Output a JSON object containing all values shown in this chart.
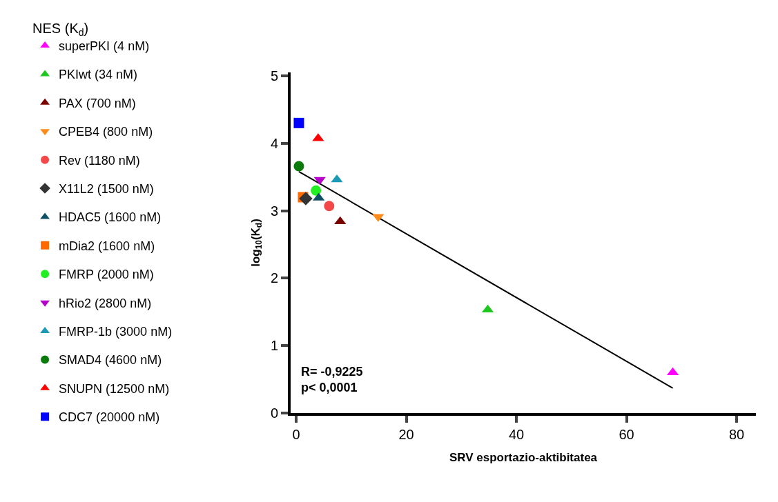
{
  "chart_data": {
    "type": "scatter",
    "xlabel": "SRV esportazio-aktibitatea",
    "ylabel": "log$_{10}$(K$_{d}$)",
    "legend_title": "NES (K$_{d}$)",
    "xlim": [
      -1,
      83.5
    ],
    "ylim": [
      0,
      5.05
    ],
    "xticks": [
      0,
      20,
      40,
      60,
      80
    ],
    "yticks": [
      0,
      1,
      2,
      3,
      4,
      5
    ],
    "legend": "left",
    "annotations": [
      {
        "text": "R= -0,9225\np< 0,0001"
      }
    ],
    "series": [
      {
        "name": "superPKI (4 nM)",
        "color": "#ff00ff",
        "marker": "triangle",
        "x": [
          68.4
        ],
        "values": [
          0.6
        ]
      },
      {
        "name": "PKIwt (34 nM)",
        "color": "#1ec81e",
        "marker": "triangle",
        "x": [
          34.8
        ],
        "values": [
          1.53
        ]
      },
      {
        "name": "PAX (700 nM)",
        "color": "#7a0000",
        "marker": "triangle",
        "x": [
          8.0
        ],
        "values": [
          2.84
        ]
      },
      {
        "name": "CPEB4 (800 nM)",
        "color": "#ff8c1a",
        "marker": "triangle-down",
        "x": [
          14.9
        ],
        "values": [
          2.91
        ]
      },
      {
        "name": "Rev (1180 nM)",
        "color": "#f24848",
        "marker": "circle",
        "x": [
          6.0
        ],
        "values": [
          3.07
        ]
      },
      {
        "name": "X11L2 (1500 nM)",
        "color": "#333333",
        "marker": "diamond",
        "x": [
          1.75
        ],
        "values": [
          3.18
        ]
      },
      {
        "name": "HDAC5 (1600 nM)",
        "color": "#0f5064",
        "marker": "triangle",
        "x": [
          4.1
        ],
        "values": [
          3.19
        ]
      },
      {
        "name": "mDia2 (1600 nM)",
        "color": "#ff6a00",
        "marker": "square",
        "x": [
          1.25
        ],
        "values": [
          3.2
        ]
      },
      {
        "name": "FMRP (2000 nM)",
        "color": "#22f022",
        "marker": "circle",
        "x": [
          3.6
        ],
        "values": [
          3.3
        ]
      },
      {
        "name": "hRio2 (2800 nM)",
        "color": "#b400c8",
        "marker": "triangle-down",
        "x": [
          4.3
        ],
        "values": [
          3.46
        ]
      },
      {
        "name": "FMRP-1b (3000 nM)",
        "color": "#1a9ab4",
        "marker": "triangle",
        "x": [
          7.4
        ],
        "values": [
          3.46
        ]
      },
      {
        "name": "SMAD4 (4600 nM)",
        "color": "#0a7a0a",
        "marker": "circle",
        "x": [
          0.5
        ],
        "values": [
          3.66
        ]
      },
      {
        "name": "SNUPN (12500 nM)",
        "color": "#ff0000",
        "marker": "triangle",
        "x": [
          4.0
        ],
        "values": [
          4.07
        ]
      },
      {
        "name": "CDC7 (20000 nM)",
        "color": "#0000ff",
        "marker": "square",
        "x": [
          0.5
        ],
        "values": [
          4.3
        ]
      },
      {
        "type": "line",
        "color": "#000000",
        "x": [
          0.5,
          68.4
        ],
        "values": [
          3.58,
          0.37
        ]
      }
    ]
  }
}
